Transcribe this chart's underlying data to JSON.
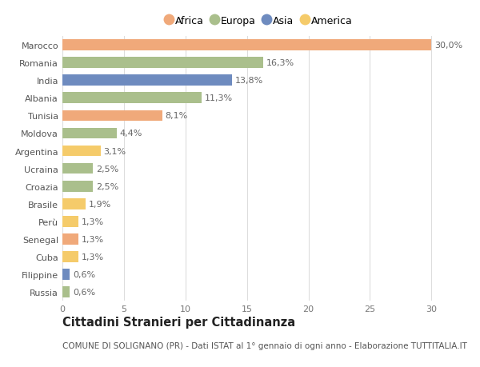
{
  "categories": [
    "Russia",
    "Filippine",
    "Cuba",
    "Senegal",
    "Perù",
    "Brasile",
    "Croazia",
    "Ucraina",
    "Argentina",
    "Moldova",
    "Tunisia",
    "Albania",
    "India",
    "Romania",
    "Marocco"
  ],
  "values": [
    0.6,
    0.6,
    1.3,
    1.3,
    1.3,
    1.9,
    2.5,
    2.5,
    3.1,
    4.4,
    8.1,
    11.3,
    13.8,
    16.3,
    30.0
  ],
  "labels": [
    "0,6%",
    "0,6%",
    "1,3%",
    "1,3%",
    "1,3%",
    "1,9%",
    "2,5%",
    "2,5%",
    "3,1%",
    "4,4%",
    "8,1%",
    "11,3%",
    "13,8%",
    "16,3%",
    "30,0%"
  ],
  "continents": [
    "Europa",
    "Asia",
    "America",
    "Africa",
    "America",
    "America",
    "Europa",
    "Europa",
    "America",
    "Europa",
    "Africa",
    "Europa",
    "Asia",
    "Europa",
    "Africa"
  ],
  "continent_colors": {
    "Africa": "#F0A97A",
    "Europa": "#AABF8C",
    "Asia": "#6E8BBF",
    "America": "#F5CB6A"
  },
  "legend_order": [
    "Africa",
    "Europa",
    "Asia",
    "America"
  ],
  "xlim": [
    0,
    32
  ],
  "xticks": [
    0,
    5,
    10,
    15,
    20,
    25,
    30
  ],
  "title": "Cittadini Stranieri per Cittadinanza",
  "subtitle": "COMUNE DI SOLIGNANO (PR) - Dati ISTAT al 1° gennaio di ogni anno - Elaborazione TUTTITALIA.IT",
  "background_color": "#ffffff",
  "grid_color": "#dddddd",
  "bar_height": 0.62,
  "label_fontsize": 8.0,
  "tick_fontsize": 8.0,
  "title_fontsize": 10.5,
  "subtitle_fontsize": 7.5
}
